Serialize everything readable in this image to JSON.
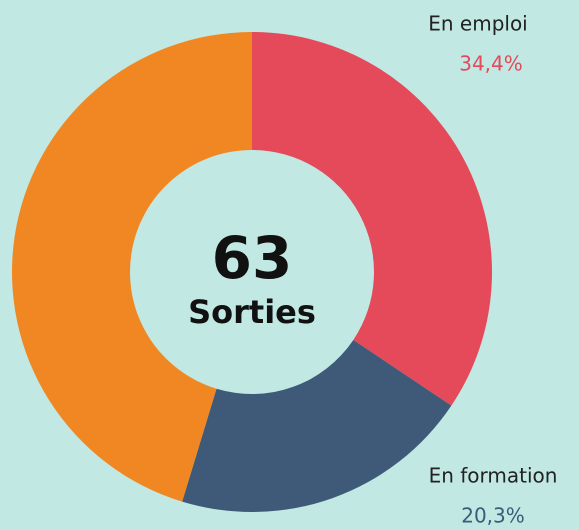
{
  "chart_data": {
    "type": "pie",
    "donut": true,
    "center_value": 63,
    "center_label": "Sorties",
    "categories": [
      "En emploi",
      "En formation",
      null
    ],
    "values": [
      34.4,
      20.3,
      45.3
    ],
    "value_labels": [
      "34,4%",
      "20,3%",
      null
    ],
    "colors": [
      "#e44a5a",
      "#3e5a78",
      "#f08722"
    ]
  }
}
